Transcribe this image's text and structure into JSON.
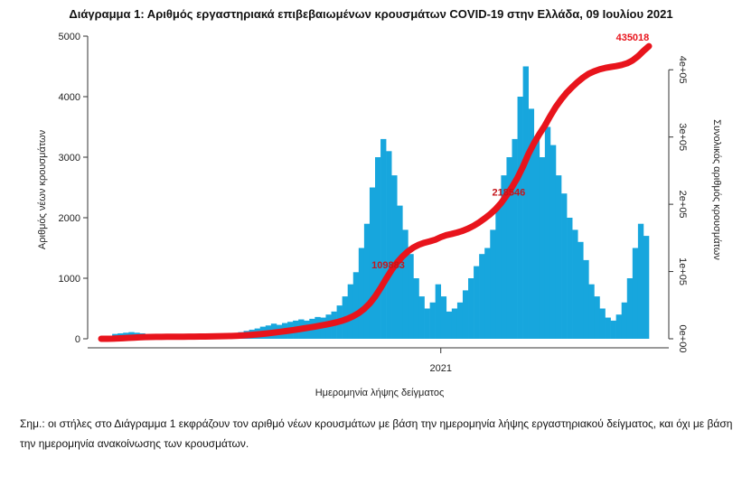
{
  "chart_data": {
    "type": "bar",
    "title": "Διάγραμμα 1: Αριθμός εργαστηριακά επιβεβαιωμένων κρουσμάτων COVID-19 στην Ελλάδα, 09 Ιουλίου 2021",
    "xlabel": "Ημερομηνία λήψης δείγματος",
    "ylabel": "Αριθμός νέων κρουσμάτων",
    "y2label": "Συνολικός αριθμός κρουσμάτων",
    "x_tick_labels": [
      "2021"
    ],
    "y_ticks": [
      "0",
      "1000",
      "2000",
      "3000",
      "4000",
      "5000"
    ],
    "y2_ticks": [
      "0e+00",
      "1e+05",
      "2e+05",
      "3e+05",
      "4e+05"
    ],
    "ylim": [
      0,
      5000
    ],
    "y2lim": [
      0,
      450000
    ],
    "x_step_days": 5,
    "x_tick_day": 310,
    "series": [
      {
        "name": "Νέα κρούσματα",
        "type": "bar",
        "color": "#17a6dd",
        "values": [
          5,
          30,
          80,
          90,
          100,
          110,
          100,
          90,
          40,
          30,
          20,
          15,
          10,
          10,
          15,
          20,
          15,
          20,
          25,
          30,
          30,
          35,
          40,
          50,
          80,
          110,
          130,
          150,
          170,
          200,
          220,
          250,
          230,
          260,
          280,
          300,
          320,
          300,
          330,
          360,
          350,
          400,
          450,
          550,
          700,
          900,
          1100,
          1500,
          1900,
          2500,
          3000,
          3300,
          3100,
          2700,
          2200,
          1800,
          1400,
          1000,
          700,
          500,
          600,
          900,
          700,
          450,
          500,
          600,
          800,
          1000,
          1200,
          1400,
          1500,
          1800,
          2200,
          2700,
          3000,
          3300,
          4000,
          4500,
          3800,
          3300,
          3000,
          3500,
          3200,
          2700,
          2400,
          2000,
          1800,
          1600,
          1300,
          900,
          700,
          500,
          350,
          300,
          400,
          600,
          1000,
          1500,
          1900,
          1700
        ]
      },
      {
        "name": "Συνολικά κρούσματα",
        "type": "line",
        "color": "#e8141c",
        "final_total": 435018
      }
    ],
    "annotations": [
      {
        "text": "109883",
        "day": 262,
        "value": 109883
      },
      {
        "text": "218546",
        "day": 372,
        "value": 218546
      },
      {
        "text": "435018",
        "day": 495,
        "value": 435018
      }
    ]
  },
  "note": "Σημ.: οι στήλες στο Διάγραμμα 1 εκφράζουν τον αριθμό νέων κρουσμάτων με βάση την ημερομηνία λήψης εργαστηριακού δείγματος, και όχι με βάση την ημερομηνία ανακοίνωσης των κρουσμάτων."
}
